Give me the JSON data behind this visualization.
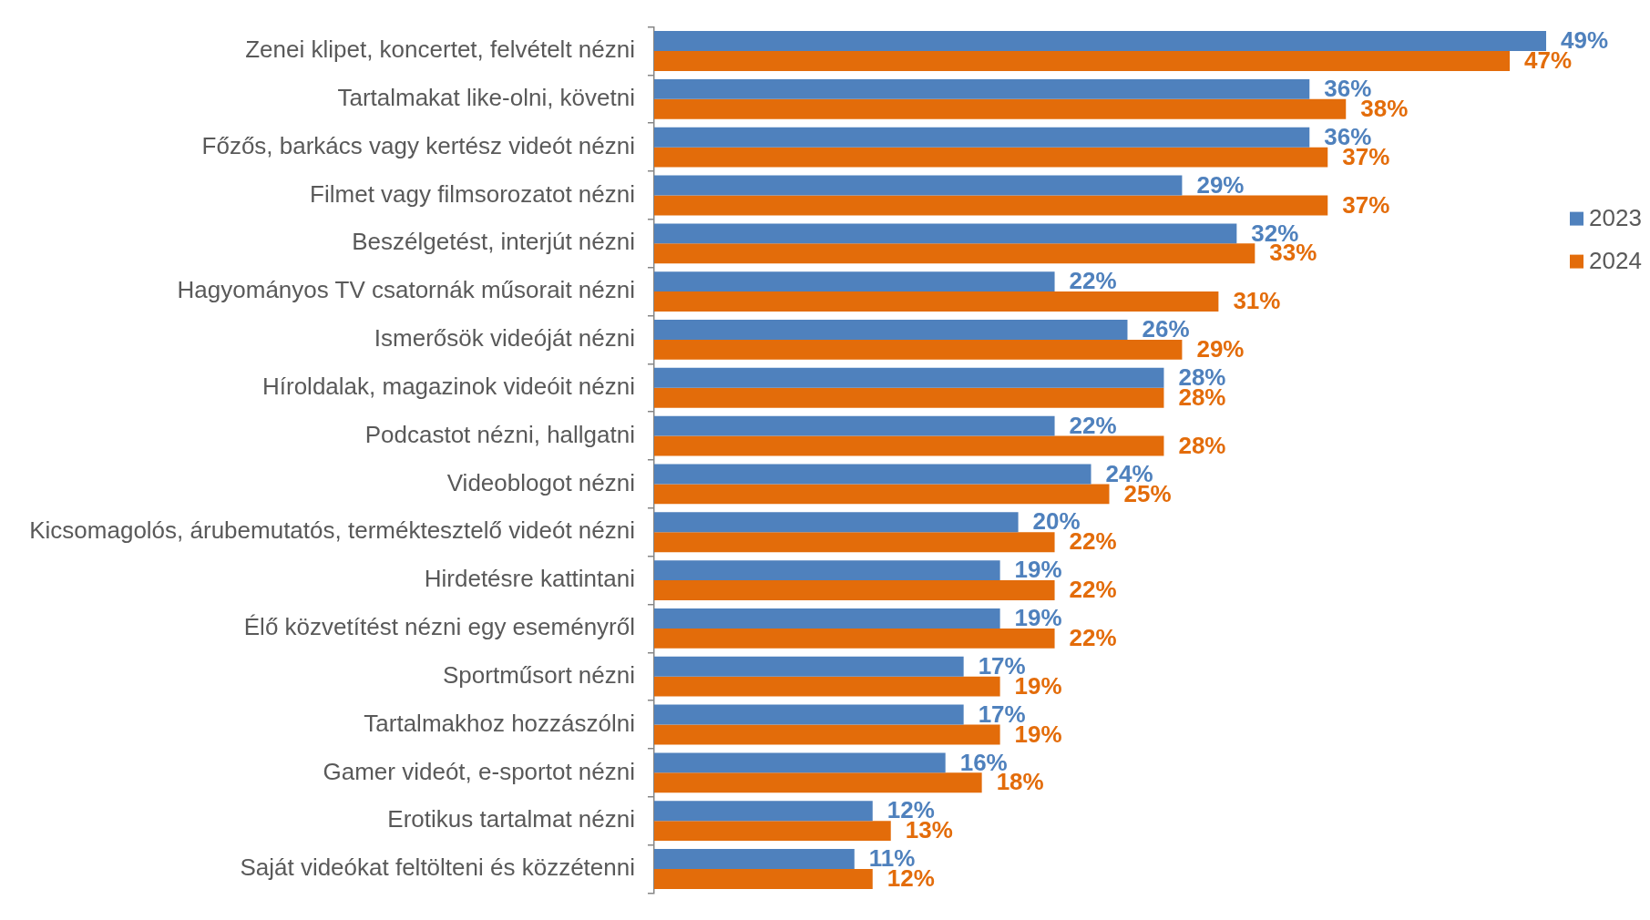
{
  "chart_data": {
    "type": "bar",
    "orientation": "horizontal",
    "tick_labels": "y",
    "legend": "right",
    "categories": [
      "Zenei klipet, koncertet, felvételt nézni",
      "Tartalmakat like-olni, követni",
      "Főzős, barkács vagy kertész videót nézni",
      "Filmet vagy filmsorozatot nézni",
      "Beszélgetést, interjút nézni",
      "Hagyományos TV csatornák műsorait nézni",
      "Ismerősök videóját nézni",
      "Híroldalak, magazinok videóit nézni",
      "Podcastot nézni, hallgatni",
      "Videoblogot nézni",
      "Kicsomagolós, árubemutatós, terméktesztelő videót nézni",
      "Hirdetésre kattintani",
      "Élő közvetítést nézni egy eseményről",
      "Sportműsort nézni",
      "Tartalmakhoz hozzászólni",
      "Gamer videót, e-sportot nézni",
      "Erotikus tartalmat nézni",
      "Saját videókat feltölteni és közzétenni"
    ],
    "series": [
      {
        "name": "2023",
        "color": "#4f81bd",
        "values": [
          49,
          36,
          36,
          29,
          32,
          22,
          26,
          28,
          22,
          24,
          20,
          19,
          19,
          17,
          17,
          16,
          12,
          11
        ],
        "value_labels": [
          "49%",
          "36%",
          "36%",
          "29%",
          "32%",
          "22%",
          "26%",
          "28%",
          "22%",
          "24%",
          "20%",
          "19%",
          "19%",
          "17%",
          "17%",
          "16%",
          "12%",
          "11%"
        ]
      },
      {
        "name": "2024",
        "color": "#e36c0a",
        "values": [
          47,
          38,
          37,
          37,
          33,
          31,
          29,
          28,
          28,
          25,
          22,
          22,
          22,
          19,
          19,
          18,
          13,
          12
        ],
        "value_labels": [
          "47%",
          "38%",
          "37%",
          "37%",
          "33%",
          "31%",
          "29%",
          "28%",
          "28%",
          "25%",
          "22%",
          "22%",
          "22%",
          "19%",
          "19%",
          "18%",
          "13%",
          "12%"
        ]
      }
    ]
  }
}
